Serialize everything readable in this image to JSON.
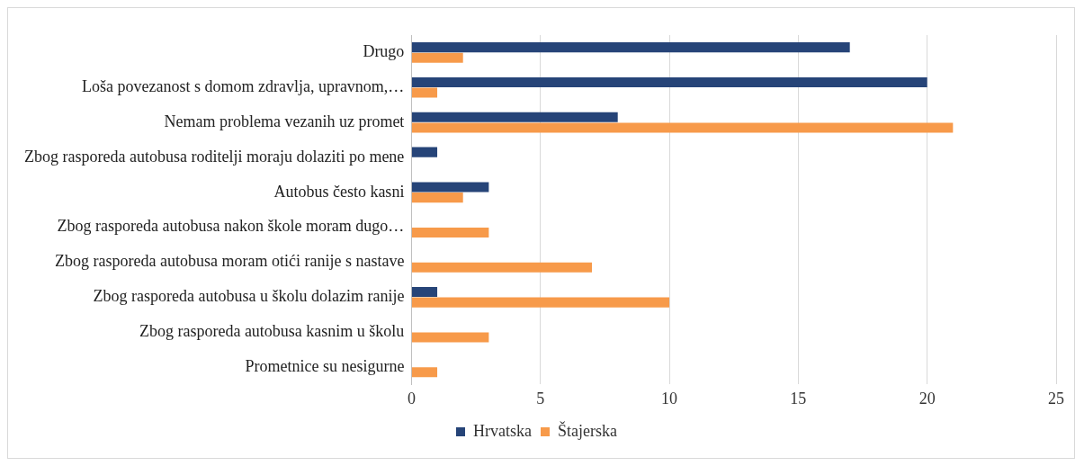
{
  "chart_data": {
    "type": "bar",
    "orientation": "horizontal",
    "categories": [
      "Drugo",
      "Loša povezanost s domom zdravlja, upravnom,…",
      "Nemam problema vezanih uz promet",
      "Zbog rasporeda autobusa roditelji moraju dolaziti po mene",
      "Autobus često kasni",
      "Zbog rasporeda autobusa nakon škole moram dugo…",
      "Zbog rasporeda autobusa moram otići ranije s nastave",
      "Zbog rasporeda autobusa u školu dolazim ranije",
      "Zbog rasporeda autobusa kasnim u školu",
      "Prometnice su nesigurne"
    ],
    "series": [
      {
        "name": "Hrvatska",
        "color": "#264478",
        "values": [
          17,
          20,
          8,
          1,
          3,
          0,
          0,
          1,
          0,
          0
        ]
      },
      {
        "name": "Štajerska",
        "color": "#f79a4a",
        "values": [
          2,
          1,
          21,
          0,
          2,
          3,
          7,
          10,
          3,
          1
        ]
      }
    ],
    "xlim": [
      0,
      25
    ],
    "xticks": [
      0,
      5,
      10,
      15,
      20,
      25
    ],
    "grid": "x",
    "legend": "bottom"
  }
}
